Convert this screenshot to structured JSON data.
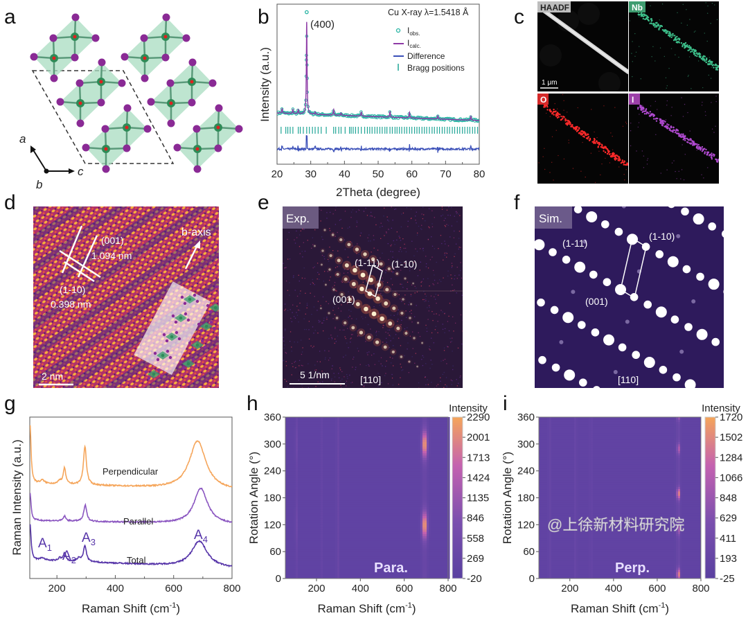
{
  "panel_labels": {
    "a": "a",
    "b": "b",
    "c": "c",
    "d": "d",
    "e": "e",
    "f": "f",
    "g": "g",
    "h": "h",
    "i": "i"
  },
  "panel_a": {
    "axes": {
      "a": "a",
      "b": "b",
      "c": "c"
    },
    "colors": {
      "octahedron": "#a8dcc0",
      "iodine": "#8a2a95",
      "niobium": "#2e8b57",
      "oxygen": "#e02020"
    }
  },
  "panel_c": {
    "maps": [
      {
        "label": "HAADF",
        "color": "#d8d8d8",
        "label_bg": "#bdbdbd",
        "label_fg": "#222222"
      },
      {
        "label": "Nb",
        "color": "#3dbf8a",
        "label_bg": "#3f9c70",
        "label_fg": "#ffffff"
      },
      {
        "label": "O",
        "color": "#ff2a2a",
        "label_bg": "#d42a2a",
        "label_fg": "#ffffff"
      },
      {
        "label": "I",
        "color": "#b04ad0",
        "label_bg": "#9c40a8",
        "label_fg": "#ffffff"
      }
    ],
    "scale_bar": "1 μm"
  },
  "panel_d": {
    "plane1": "(001)",
    "spacing1": "1.094 nm",
    "plane2": "(1-10)",
    "spacing2": "0.398 nm",
    "axis_label": "b-axis",
    "scale_bar": "2 nm"
  },
  "panel_e": {
    "tag": "Exp.",
    "spot1": "(1-11)",
    "spot2": "(1-10)",
    "spot3": "(001)",
    "scale_bar": "5 1/nm",
    "zone": "[110]"
  },
  "panel_f": {
    "tag": "Sim.",
    "spot1": "(1-11)",
    "spot2": "(1-10)",
    "spot3": "(001)",
    "zone": "[110]"
  },
  "watermark": "@上徐新材料研究院",
  "chart_data": [
    {
      "id": "b",
      "type": "scatter+line",
      "title": "Cu X-ray λ=1.5418 Å",
      "xlabel": "2Theta (degree)",
      "ylabel": "Intensity (a.u.)",
      "xlim": [
        20,
        80
      ],
      "ylim": [
        0,
        100
      ],
      "xticks": [
        "20",
        "30",
        "40",
        "50",
        "60",
        "70",
        "80"
      ],
      "annotation": "(400)",
      "legend": {
        "position": "top-right",
        "obs": "I",
        "obs_sub": "obs.",
        "calc": "I",
        "calc_sub": "calc.",
        "diff": "Difference",
        "bragg": "Bragg positions"
      },
      "colors": {
        "obs": "#2bb5a5",
        "calc": "#8e3aa6",
        "diff": "#3a4fb8",
        "bragg": "#1fa596"
      },
      "background": [
        32,
        27.3
      ],
      "peaks": [
        {
          "x": 21.5,
          "h": 3
        },
        {
          "x": 24.7,
          "h": 2.5
        },
        {
          "x": 26.3,
          "h": 2.5
        },
        {
          "x": 28.8,
          "h": 58
        },
        {
          "x": 31.3,
          "h": 1.5
        },
        {
          "x": 36.8,
          "h": 3.5
        },
        {
          "x": 39.0,
          "h": 1.5
        },
        {
          "x": 45.0,
          "h": 2.5
        },
        {
          "x": 53.5,
          "h": 3.5
        },
        {
          "x": 59.3,
          "h": 3.5
        },
        {
          "x": 67.7,
          "h": 2
        },
        {
          "x": 77.5,
          "h": 2.5
        }
      ],
      "obs_peak_max": 95,
      "difference_level": 9.5,
      "bragg_positions": [
        21.2,
        22.6,
        23.2,
        23.9,
        24.7,
        26.3,
        26.9,
        27.8,
        28.8,
        29.6,
        30.5,
        31.3,
        32.2,
        33.1,
        34.6,
        36.8,
        37.4,
        38.3,
        39.0,
        40.2,
        41.5,
        42.0,
        42.6,
        43.3,
        44.1,
        45.0,
        46.0,
        46.8,
        47.5,
        48.2,
        49.0,
        49.7,
        50.5,
        51.2,
        52.0,
        52.6,
        53.5,
        54.2,
        55.0,
        55.6,
        56.3,
        57.0,
        57.8,
        58.5,
        59.3,
        60.0,
        60.8,
        61.5,
        62.2,
        63.0,
        63.7,
        64.4,
        65.2,
        66.0,
        66.7,
        67.5,
        68.2,
        69.0,
        69.7,
        70.5,
        71.2,
        72.0,
        72.7,
        73.5,
        74.2,
        75.0,
        75.7,
        76.5,
        77.2,
        78.0,
        78.7,
        79.5
      ]
    },
    {
      "id": "g",
      "type": "line",
      "xlabel": "Raman Shift (cm-1)",
      "ylabel": "Raman Intensity (a.u.)",
      "xlim": [
        107,
        800
      ],
      "ylim": [
        0,
        100
      ],
      "xticks": [
        "200",
        "400",
        "600",
        "800"
      ],
      "series": [
        {
          "name": "Perpendicular",
          "color": "#f5a55a",
          "baseline": [
            59,
            54.5
          ],
          "peaks": [
            {
              "x": 108,
              "h": 36,
              "w": 4
            },
            {
              "x": 150,
              "h": 2,
              "w": 8
            },
            {
              "x": 210,
              "h": 2,
              "w": 6
            },
            {
              "x": 226,
              "h": 10,
              "w": 5
            },
            {
              "x": 296,
              "h": 24,
              "w": 6
            },
            {
              "x": 682,
              "h": 30,
              "w": 34
            }
          ]
        },
        {
          "name": "Parallel",
          "color": "#8a55c0",
          "baseline": [
            36,
            33.5
          ],
          "peaks": [
            {
              "x": 108,
              "h": 17,
              "w": 4
            },
            {
              "x": 226,
              "h": 3,
              "w": 5
            },
            {
              "x": 297,
              "h": 10,
              "w": 6
            },
            {
              "x": 693,
              "h": 22,
              "w": 28
            }
          ]
        },
        {
          "name": "Total",
          "color": "#5533a8",
          "baseline": [
            11.6,
            6.4
          ],
          "peaks": [
            {
              "x": 108,
              "h": 22,
              "w": 4
            },
            {
              "x": 150,
              "h": 1.5,
              "w": 8
            },
            {
              "x": 210,
              "h": 2,
              "w": 5
            },
            {
              "x": 226,
              "h": 5,
              "w": 5
            },
            {
              "x": 275,
              "h": 2,
              "w": 8
            },
            {
              "x": 296,
              "h": 10,
              "w": 6
            },
            {
              "x": 688,
              "h": 16,
              "w": 32
            }
          ]
        }
      ],
      "mode_labels": [
        {
          "t": "A",
          "sub": "1"
        },
        {
          "t": "A",
          "sub": "2"
        },
        {
          "t": "A",
          "sub": "3"
        },
        {
          "t": "A",
          "sub": "4"
        }
      ]
    },
    {
      "id": "h",
      "type": "heatmap",
      "tag": "Para.",
      "xlabel": "Raman Shift (cm-1)",
      "ylabel": "Rotation Angle (°)",
      "xlim": [
        58,
        800
      ],
      "ylim": [
        0,
        360
      ],
      "xticks": [
        "200",
        "400",
        "600",
        "800"
      ],
      "yticks": [
        "0",
        "60",
        "120",
        "180",
        "240",
        "300",
        "360"
      ],
      "colorbar": {
        "title": "Intensity",
        "ticks": [
          "-20",
          "269",
          "558",
          "846",
          "1135",
          "1424",
          "1713",
          "2001",
          "2290"
        ],
        "min": -20,
        "max": 2290
      },
      "colormap": [
        "#5a40a0",
        "#7a4fae",
        "#c462b0",
        "#f5a55a"
      ],
      "background": 120,
      "peaks": [
        {
          "x": 107,
          "amp": 550,
          "w": 3,
          "max_angles": [
            120,
            300
          ],
          "spread": 45,
          "floor": 0.4
        },
        {
          "x": 226,
          "amp": 180,
          "w": 3,
          "max_angles": [],
          "floor": 1
        },
        {
          "x": 297,
          "amp": 260,
          "w": 4,
          "max_angles": [],
          "floor": 1
        },
        {
          "x": 693,
          "amp": 2150,
          "w": 9,
          "max_angles": [
            120,
            300
          ],
          "spread": 30,
          "floor": 0.1
        }
      ]
    },
    {
      "id": "i",
      "type": "heatmap",
      "tag": "Perp.",
      "xlabel": "Raman Shift (cm-1)",
      "ylabel": "Rotation Angle (°)",
      "xlim": [
        58,
        800
      ],
      "ylim": [
        0,
        360
      ],
      "xticks": [
        "200",
        "400",
        "600",
        "800"
      ],
      "yticks": [
        "0",
        "60",
        "120",
        "180",
        "240",
        "300",
        "360"
      ],
      "colorbar": {
        "title": "Intensity",
        "ticks": [
          "-25",
          "193",
          "411",
          "629",
          "848",
          "1066",
          "1284",
          "1502",
          "1720"
        ],
        "min": -25,
        "max": 1720
      },
      "colormap": [
        "#5a40a0",
        "#7a4fae",
        "#c462b0",
        "#f5a55a"
      ],
      "background": 110,
      "peaks": [
        {
          "x": 107,
          "amp": 150,
          "w": 3,
          "max_angles": [],
          "floor": 1
        },
        {
          "x": 226,
          "amp": 110,
          "w": 3,
          "max_angles": [],
          "floor": 1
        },
        {
          "x": 297,
          "amp": 150,
          "w": 3,
          "max_angles": [],
          "floor": 1
        },
        {
          "x": 697,
          "amp": 1600,
          "w": 5,
          "max_angles": [
            10,
            110,
            190,
            290
          ],
          "weights": [
            1,
            0.55,
            1,
            0.6
          ],
          "spread": 13,
          "floor": 0.12
        }
      ]
    }
  ]
}
